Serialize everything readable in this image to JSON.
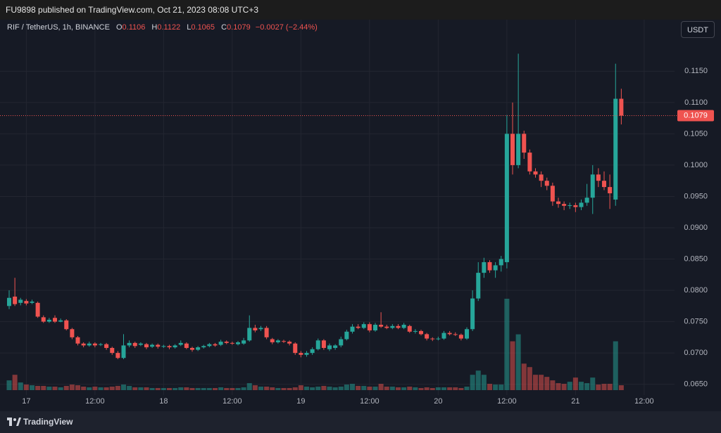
{
  "header": {
    "publisher": "FU9898 published on TradingView.com, Oct 21, 2023 08:08 UTC+3"
  },
  "legend": {
    "symbol": "RIF / TetherUS, 1h, BINANCE",
    "open_label": "O",
    "open": "0.1106",
    "high_label": "H",
    "high": "0.1122",
    "low_label": "L",
    "low": "0.1065",
    "close_label": "C",
    "close": "0.1079",
    "change": "−0.0027 (−2.44%)"
  },
  "currency_button": "USDT",
  "footer": {
    "brand": "TradingView"
  },
  "chart_data": {
    "type": "candlestick",
    "categories": [
      null,
      null,
      null,
      "17",
      null,
      null,
      null,
      null,
      null,
      null,
      null,
      null,
      null,
      null,
      null,
      "12:00",
      null,
      null,
      null,
      null,
      null,
      null,
      null,
      null,
      null,
      null,
      null,
      "18",
      null,
      null,
      null,
      null,
      null,
      null,
      null,
      null,
      null,
      null,
      null,
      "12:00",
      null,
      null,
      null,
      null,
      null,
      null,
      null,
      null,
      null,
      null,
      null,
      "19",
      null,
      null,
      null,
      null,
      null,
      null,
      null,
      null,
      null,
      null,
      null,
      "12:00",
      null,
      null,
      null,
      null,
      null,
      null,
      null,
      null,
      null,
      null,
      null,
      "20",
      null,
      null,
      null,
      null,
      null,
      null,
      null,
      null,
      null,
      null,
      null,
      "12:00",
      null,
      null,
      null,
      null,
      null,
      null,
      null,
      null,
      null,
      null,
      null,
      "21",
      null,
      null,
      null,
      null,
      null,
      null,
      null,
      null,
      null,
      null,
      null,
      "12:00"
    ],
    "open": [
      0.0775,
      0.079,
      0.078,
      0.0783,
      0.078,
      0.078,
      0.0757,
      0.075,
      0.0756,
      0.075,
      0.0752,
      0.0738,
      0.0725,
      0.0715,
      0.0712,
      0.0715,
      0.0713,
      0.0714,
      0.0708,
      0.07,
      0.0692,
      0.0712,
      0.0716,
      0.0713,
      0.0714,
      0.071,
      0.0713,
      0.071,
      0.0711,
      0.0709,
      0.0713,
      0.0715,
      0.0708,
      0.0705,
      0.0709,
      0.0711,
      0.0714,
      0.0713,
      0.0718,
      0.0716,
      0.0714,
      0.0715,
      0.072,
      0.074,
      0.0738,
      0.074,
      0.0722,
      0.0717,
      0.0719,
      0.0718,
      0.0715,
      0.07,
      0.0697,
      0.07,
      0.0706,
      0.072,
      0.0706,
      0.0708,
      0.0712,
      0.0722,
      0.0734,
      0.0742,
      0.074,
      0.0746,
      0.0736,
      0.0745,
      0.0742,
      0.074,
      0.0743,
      0.074,
      0.0743,
      0.0734,
      0.0735,
      0.073,
      0.0723,
      0.0722,
      0.0723,
      0.0732,
      0.073,
      0.0729,
      0.0723,
      0.0738,
      0.0787,
      0.0828,
      0.0845,
      0.0832,
      0.084,
      0.0845,
      0.105,
      0.1,
      0.105,
      0.102,
      0.099,
      0.0985,
      0.0975,
      0.0967,
      0.0942,
      0.0938,
      0.0935,
      0.0936,
      0.0933,
      0.094,
      0.0948,
      0.0985,
      0.0975,
      0.0965,
      0.0945,
      0.1106,
      null,
      null,
      null,
      null
    ],
    "high": [
      0.08,
      0.082,
      0.0788,
      0.0786,
      0.0785,
      0.0782,
      0.076,
      0.0756,
      0.076,
      0.0755,
      0.0754,
      0.074,
      0.0727,
      0.0717,
      0.0718,
      0.0717,
      0.0716,
      0.0716,
      0.071,
      0.0703,
      0.073,
      0.072,
      0.0718,
      0.0717,
      0.0716,
      0.0715,
      0.0715,
      0.0713,
      0.0713,
      0.0714,
      0.072,
      0.0717,
      0.071,
      0.0711,
      0.0713,
      0.0716,
      0.0716,
      0.0721,
      0.072,
      0.0718,
      0.0719,
      0.0724,
      0.076,
      0.0745,
      0.0743,
      0.0743,
      0.0724,
      0.0722,
      0.0721,
      0.072,
      0.0717,
      0.0703,
      0.0703,
      0.0709,
      0.0723,
      0.0722,
      0.0715,
      0.0714,
      0.0726,
      0.0737,
      0.0746,
      0.0746,
      0.0749,
      0.0749,
      0.0748,
      0.0765,
      0.0745,
      0.0746,
      0.0746,
      0.0748,
      0.0745,
      0.0738,
      0.0737,
      0.0732,
      0.0725,
      0.0726,
      0.0735,
      0.0735,
      0.0733,
      0.0731,
      0.0741,
      0.08,
      0.0845,
      0.0852,
      0.0848,
      0.0845,
      0.0855,
      0.108,
      0.11,
      0.1178,
      0.1055,
      0.1025,
      0.0995,
      0.099,
      0.098,
      0.0972,
      0.0948,
      0.0942,
      0.094,
      0.094,
      0.0945,
      0.097,
      0.1,
      0.0995,
      0.099,
      0.0985,
      0.1162,
      0.1122,
      null,
      null,
      null,
      null
    ],
    "low": [
      0.077,
      0.0775,
      0.0776,
      0.0776,
      0.0778,
      0.0756,
      0.0748,
      0.0748,
      0.0748,
      0.0749,
      0.0736,
      0.0722,
      0.0712,
      0.0709,
      0.071,
      0.0709,
      0.0711,
      0.0705,
      0.0697,
      0.069,
      0.069,
      0.0709,
      0.0708,
      0.0711,
      0.0706,
      0.0708,
      0.0707,
      0.0708,
      0.0706,
      0.0707,
      0.0711,
      0.0706,
      0.0702,
      0.0703,
      0.0707,
      0.0709,
      0.071,
      0.0711,
      0.0714,
      0.0713,
      0.0712,
      0.0713,
      0.0718,
      0.0733,
      0.0735,
      0.0722,
      0.0714,
      0.0715,
      0.0716,
      0.0712,
      0.0697,
      0.0693,
      0.0694,
      0.0697,
      0.0704,
      0.0705,
      0.0703,
      0.0705,
      0.0709,
      0.072,
      0.0731,
      0.0738,
      0.0738,
      0.0733,
      0.0734,
      0.074,
      0.0738,
      0.0738,
      0.0738,
      0.0738,
      0.0732,
      0.0731,
      0.0728,
      0.072,
      0.0719,
      0.072,
      0.0721,
      0.0728,
      0.0727,
      0.072,
      0.0721,
      0.0735,
      0.0783,
      0.082,
      0.0828,
      0.082,
      0.083,
      0.0835,
      0.0985,
      0.0995,
      0.101,
      0.0985,
      0.098,
      0.0965,
      0.096,
      0.0935,
      0.0932,
      0.0928,
      0.093,
      0.0925,
      0.0928,
      0.0935,
      0.0922,
      0.0965,
      0.096,
      0.093,
      0.0935,
      0.1065,
      null,
      null,
      null,
      null
    ],
    "close": [
      0.0788,
      0.0778,
      0.0785,
      0.0779,
      0.0782,
      0.0758,
      0.075,
      0.0753,
      0.075,
      0.0752,
      0.0738,
      0.0725,
      0.0715,
      0.0712,
      0.0715,
      0.0712,
      0.0714,
      0.0708,
      0.07,
      0.0692,
      0.0712,
      0.0716,
      0.0711,
      0.0715,
      0.0709,
      0.0713,
      0.071,
      0.0711,
      0.0709,
      0.0712,
      0.0716,
      0.0708,
      0.0705,
      0.0709,
      0.0711,
      0.0714,
      0.0712,
      0.0718,
      0.0716,
      0.0715,
      0.0717,
      0.072,
      0.074,
      0.0736,
      0.074,
      0.0725,
      0.0717,
      0.072,
      0.0718,
      0.0715,
      0.07,
      0.0697,
      0.07,
      0.0706,
      0.072,
      0.0708,
      0.0712,
      0.0712,
      0.0722,
      0.0734,
      0.0742,
      0.074,
      0.0746,
      0.0736,
      0.0745,
      0.0742,
      0.074,
      0.0743,
      0.074,
      0.0745,
      0.0734,
      0.0735,
      0.073,
      0.0723,
      0.0722,
      0.0723,
      0.0732,
      0.073,
      0.0729,
      0.0723,
      0.0738,
      0.0787,
      0.0828,
      0.0845,
      0.0832,
      0.084,
      0.085,
      0.105,
      0.1,
      0.105,
      0.102,
      0.099,
      0.0985,
      0.0975,
      0.0967,
      0.0942,
      0.0938,
      0.0935,
      0.0936,
      0.0933,
      0.094,
      0.0948,
      0.0985,
      0.0975,
      0.0965,
      0.0955,
      0.1106,
      0.1079,
      null,
      null,
      null,
      null
    ],
    "volume": [
      14,
      22,
      11,
      8,
      7,
      6,
      6,
      5,
      5,
      4,
      6,
      8,
      7,
      5,
      4,
      5,
      4,
      4,
      5,
      6,
      8,
      6,
      4,
      4,
      4,
      3,
      3,
      3,
      3,
      3,
      4,
      4,
      3,
      3,
      3,
      3,
      3,
      4,
      3,
      3,
      3,
      4,
      10,
      7,
      5,
      5,
      4,
      3,
      3,
      3,
      4,
      7,
      5,
      4,
      5,
      6,
      5,
      4,
      5,
      8,
      9,
      6,
      6,
      5,
      5,
      9,
      5,
      5,
      4,
      4,
      5,
      4,
      3,
      4,
      3,
      4,
      4,
      4,
      4,
      3,
      5,
      22,
      28,
      22,
      9,
      8,
      8,
      131,
      70,
      80,
      38,
      33,
      22,
      22,
      19,
      14,
      10,
      9,
      12,
      18,
      12,
      10,
      18,
      8,
      9,
      9,
      70,
      7,
      null,
      null,
      null,
      null
    ],
    "up_color": "#26a69a",
    "down_color": "#ef5350",
    "ylim": [
      0.0635,
      0.1202
    ],
    "yticks": [
      {
        "value": 0.065,
        "label": "0.0650"
      },
      {
        "value": 0.07,
        "label": "0.0700"
      },
      {
        "value": 0.075,
        "label": "0.0750"
      },
      {
        "value": 0.08,
        "label": "0.0800"
      },
      {
        "value": 0.085,
        "label": "0.0850"
      },
      {
        "value": 0.09,
        "label": "0.0900"
      },
      {
        "value": 0.095,
        "label": "0.0950"
      },
      {
        "value": 0.1,
        "label": "0.1000"
      },
      {
        "value": 0.105,
        "label": "0.1050"
      },
      {
        "value": 0.11,
        "label": "0.1100"
      },
      {
        "value": 0.115,
        "label": "0.1150"
      }
    ],
    "grid": true,
    "last_price": {
      "value": 0.1079,
      "label": "0.1079"
    }
  }
}
